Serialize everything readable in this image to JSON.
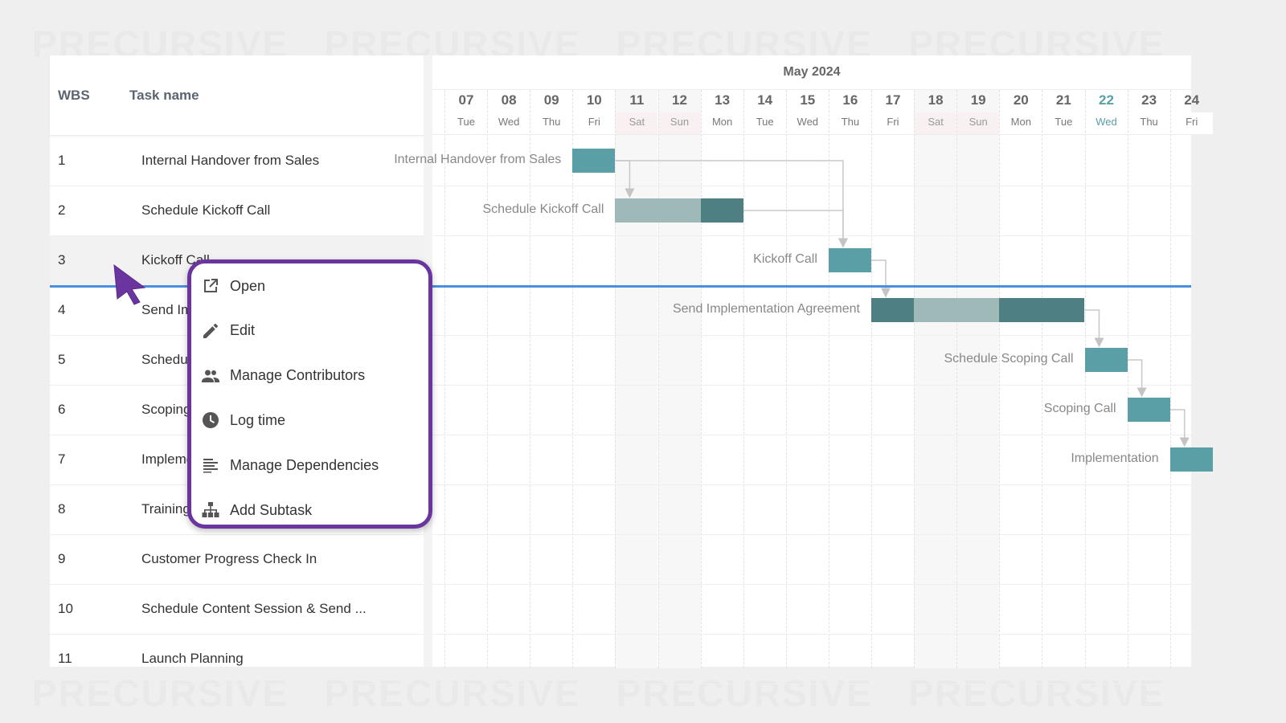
{
  "watermark": "PRECURSIVE",
  "colors": {
    "bar": "#5a9ea6",
    "bar_dark": "#4e7f82",
    "bar_light": "#9fb8b8",
    "today": "#5a9ea6",
    "now_line": "#4a8ee0",
    "menu_border": "#6b35a0"
  },
  "grid": {
    "headers": {
      "wbs": "WBS",
      "task_name": "Task name"
    },
    "rows": [
      {
        "wbs": "1",
        "name": "Internal Handover from Sales"
      },
      {
        "wbs": "2",
        "name": "Schedule Kickoff Call"
      },
      {
        "wbs": "3",
        "name": "Kickoff Call"
      },
      {
        "wbs": "4",
        "name": "Send Implementation Agreement"
      },
      {
        "wbs": "5",
        "name": "Schedule Scoping Call"
      },
      {
        "wbs": "6",
        "name": "Scoping Call"
      },
      {
        "wbs": "7",
        "name": "Implementation"
      },
      {
        "wbs": "8",
        "name": "Training"
      },
      {
        "wbs": "9",
        "name": "Customer Progress Check In"
      },
      {
        "wbs": "10",
        "name": "Schedule Content Session & Send ..."
      },
      {
        "wbs": "11",
        "name": "Launch Planning"
      }
    ],
    "selected_row": 3
  },
  "timeline": {
    "month": "May 2024",
    "days": [
      {
        "num": "07",
        "name": "Tue"
      },
      {
        "num": "08",
        "name": "Wed"
      },
      {
        "num": "09",
        "name": "Thu"
      },
      {
        "num": "10",
        "name": "Fri"
      },
      {
        "num": "11",
        "name": "Sat",
        "weekend": true
      },
      {
        "num": "12",
        "name": "Sun",
        "weekend": true
      },
      {
        "num": "13",
        "name": "Mon"
      },
      {
        "num": "14",
        "name": "Tue"
      },
      {
        "num": "15",
        "name": "Wed"
      },
      {
        "num": "16",
        "name": "Thu"
      },
      {
        "num": "17",
        "name": "Fri"
      },
      {
        "num": "18",
        "name": "Sat",
        "weekend": true
      },
      {
        "num": "19",
        "name": "Sun",
        "weekend": true
      },
      {
        "num": "20",
        "name": "Mon"
      },
      {
        "num": "21",
        "name": "Tue"
      },
      {
        "num": "22",
        "name": "Wed",
        "today": true
      },
      {
        "num": "23",
        "name": "Thu"
      },
      {
        "num": "24",
        "name": "Fri"
      }
    ]
  },
  "bars": [
    {
      "row": 1,
      "label": "Internal Handover from Sales",
      "start": "10",
      "segments": [
        [
          "bar",
          1
        ]
      ]
    },
    {
      "row": 2,
      "label": "Schedule Kickoff Call",
      "start": "11",
      "segments": [
        [
          "bar_light",
          2
        ],
        [
          "bar_dark",
          1
        ]
      ]
    },
    {
      "row": 3,
      "label": "Kickoff Call",
      "start": "16",
      "segments": [
        [
          "bar",
          1
        ]
      ]
    },
    {
      "row": 4,
      "label": "Send Implementation Agreement",
      "start": "17",
      "segments": [
        [
          "bar_dark",
          1
        ],
        [
          "bar_light",
          2
        ],
        [
          "bar_dark",
          2
        ]
      ]
    },
    {
      "row": 5,
      "label": "Schedule Scoping Call",
      "start": "22",
      "segments": [
        [
          "bar",
          1
        ]
      ]
    },
    {
      "row": 6,
      "label": "Scoping Call",
      "start": "23",
      "segments": [
        [
          "bar",
          1
        ]
      ]
    },
    {
      "row": 7,
      "label": "Implementation",
      "start": "24",
      "segments": [
        [
          "bar",
          1
        ]
      ]
    }
  ],
  "dependencies": [
    [
      1,
      2
    ],
    [
      1,
      3
    ],
    [
      2,
      3
    ],
    [
      3,
      4
    ],
    [
      4,
      5
    ],
    [
      5,
      6
    ],
    [
      6,
      7
    ]
  ],
  "context_menu": {
    "items": [
      {
        "label": "Open",
        "icon": "open-external-icon"
      },
      {
        "label": "Edit",
        "icon": "pencil-icon"
      },
      {
        "label": "Manage Contributors",
        "icon": "people-icon"
      },
      {
        "label": "Log time",
        "icon": "clock-icon"
      },
      {
        "label": "Manage Dependencies",
        "icon": "dependencies-list-icon"
      },
      {
        "label": "Add Subtask",
        "icon": "hierarchy-icon"
      }
    ]
  }
}
